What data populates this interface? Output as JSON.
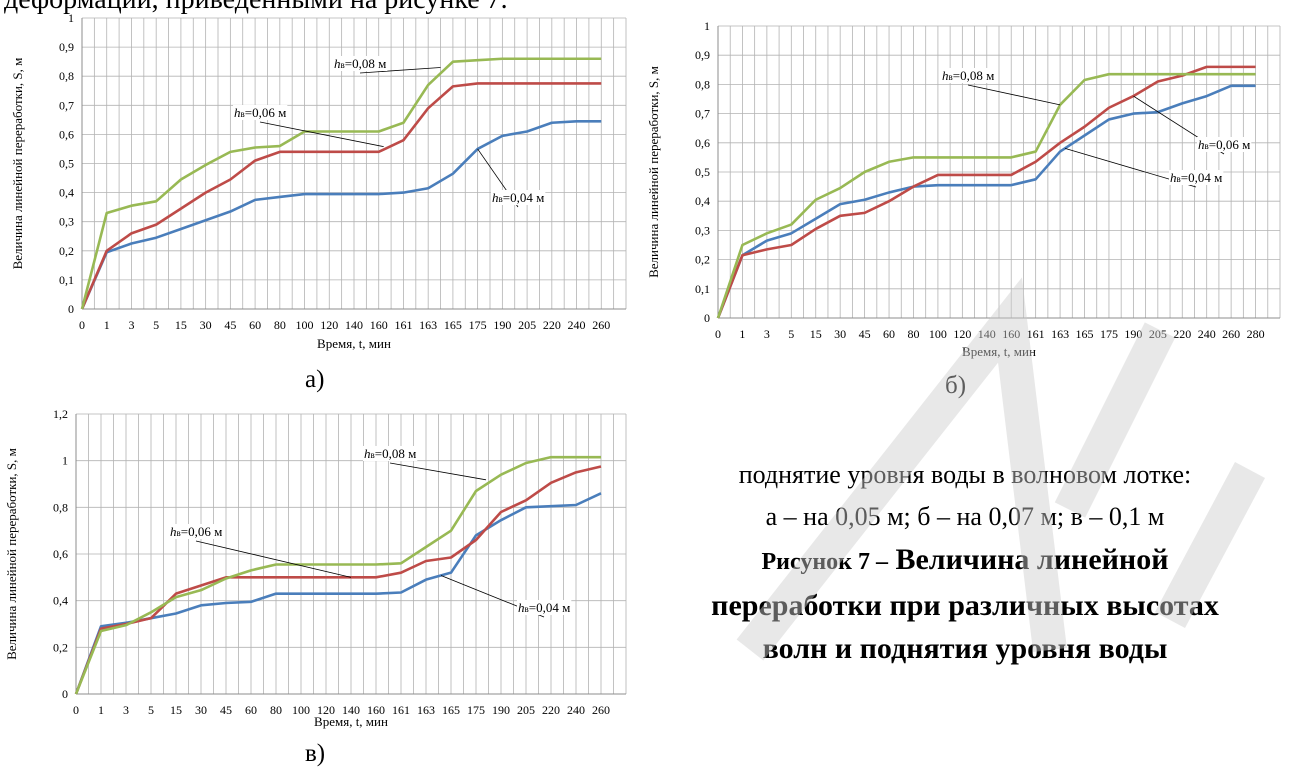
{
  "top_text": "деформаций, приведенными на рисунке 7.",
  "caption": {
    "line1": "поднятие уровня воды в волновом лотке:",
    "line2": "а – на 0,05 м; б – на 0,07 м; в – 0,1 м",
    "title_lead": "Рисунок 7 –",
    "title_rest1": "Величина линейной",
    "title_line2": "переработки при различных высотах",
    "title_line3": "волн и поднятия уровня воды"
  },
  "colors": {
    "h004": "#4a7ebb",
    "h006": "#be4b48",
    "h008": "#98b954",
    "grid": "#b3b3b3",
    "axis": "#8c8c8c"
  },
  "chart_data": [
    {
      "id": "a",
      "panel_label": "а)",
      "type": "line",
      "ylabel": "Величина линейной переработки, S, м",
      "xlabel": "Время, t, мин",
      "categories": [
        "0",
        "1",
        "3",
        "5",
        "15",
        "30",
        "45",
        "60",
        "80",
        "100",
        "120",
        "140",
        "160",
        "161",
        "163",
        "165",
        "175",
        "190",
        "205",
        "220",
        "240",
        "260"
      ],
      "ylim": [
        0,
        1
      ],
      "yticks": [
        "0",
        "0,1",
        "0,2",
        "0,3",
        "0,4",
        "0,5",
        "0,6",
        "0,7",
        "0,8",
        "0,9",
        "1"
      ],
      "grid": true,
      "series": [
        {
          "name": "hв=0,04 м",
          "values": [
            0,
            0.195,
            0.225,
            0.245,
            0.275,
            0.305,
            0.335,
            0.375,
            0.385,
            0.395,
            0.395,
            0.395,
            0.395,
            0.4,
            0.415,
            0.465,
            0.55,
            0.595,
            0.61,
            0.64,
            0.645,
            0.645
          ]
        },
        {
          "name": "hв=0,06 м",
          "values": [
            0,
            0.2,
            0.26,
            0.29,
            0.345,
            0.4,
            0.445,
            0.51,
            0.54,
            0.54,
            0.54,
            0.54,
            0.54,
            0.58,
            0.69,
            0.765,
            0.775,
            0.775,
            0.775,
            0.775,
            0.775,
            0.775
          ]
        },
        {
          "name": "hв=0,08 м",
          "values": [
            0,
            0.33,
            0.355,
            0.37,
            0.445,
            0.495,
            0.54,
            0.555,
            0.56,
            0.61,
            0.61,
            0.61,
            0.61,
            0.64,
            0.77,
            0.85,
            0.855,
            0.86,
            0.86,
            0.86,
            0.86,
            0.86
          ]
        }
      ],
      "annotations": [
        {
          "series": "hв=0,08 м",
          "h": "h",
          "sub": "в",
          "text": "=0,08 м"
        },
        {
          "series": "hв=0,06 м",
          "h": "h",
          "sub": "в",
          "text": "=0,06 м"
        },
        {
          "series": "hв=0,04 м",
          "h": "h",
          "sub": "в",
          "text": "=0,04 м"
        }
      ]
    },
    {
      "id": "b",
      "panel_label": "б)",
      "type": "line",
      "ylabel": "Величина линейной переработки, S, м",
      "xlabel": "Время, t, мин",
      "categories": [
        "0",
        "1",
        "3",
        "5",
        "15",
        "30",
        "45",
        "60",
        "80",
        "100",
        "120",
        "140",
        "160",
        "161",
        "163",
        "165",
        "175",
        "190",
        "205",
        "220",
        "240",
        "260",
        "280"
      ],
      "ylim": [
        0,
        1
      ],
      "yticks": [
        "0",
        "0,1",
        "0,2",
        "0,3",
        "0,4",
        "0,5",
        "0,6",
        "0,7",
        "0,8",
        "0,9",
        "1"
      ],
      "grid": true,
      "series": [
        {
          "name": "hв=0,04 м",
          "values": [
            0,
            0.215,
            0.265,
            0.29,
            0.34,
            0.39,
            0.405,
            0.43,
            0.45,
            0.455,
            0.455,
            0.455,
            0.455,
            0.475,
            0.57,
            0.625,
            0.68,
            0.7,
            0.705,
            0.735,
            0.76,
            0.795,
            0.795
          ]
        },
        {
          "name": "hв=0,06 м",
          "values": [
            0,
            0.215,
            0.235,
            0.25,
            0.305,
            0.35,
            0.36,
            0.4,
            0.45,
            0.49,
            0.49,
            0.49,
            0.49,
            0.535,
            0.6,
            0.655,
            0.72,
            0.76,
            0.81,
            0.83,
            0.86,
            0.86,
            0.86
          ]
        },
        {
          "name": "hв=0,08 м",
          "values": [
            0,
            0.25,
            0.29,
            0.32,
            0.405,
            0.445,
            0.5,
            0.535,
            0.55,
            0.55,
            0.55,
            0.55,
            0.55,
            0.57,
            0.73,
            0.815,
            0.835,
            0.835,
            0.835,
            0.835,
            0.835,
            0.835,
            0.835
          ]
        }
      ],
      "annotations": [
        {
          "series": "hв=0,08 м",
          "h": "h",
          "sub": "в",
          "text": "=0,08 м"
        },
        {
          "series": "hв=0,06 м",
          "h": "h",
          "sub": "в",
          "text": "=0,06 м"
        },
        {
          "series": "hв=0,04 м",
          "h": "h",
          "sub": "в",
          "text": "=0,04 м"
        }
      ]
    },
    {
      "id": "c",
      "panel_label": "в)",
      "type": "line",
      "ylabel": "Величина линейной переработки, S, м",
      "xlabel": "Время, t, мин",
      "categories": [
        "0",
        "1",
        "3",
        "5",
        "15",
        "30",
        "45",
        "60",
        "80",
        "100",
        "120",
        "140",
        "160",
        "161",
        "163",
        "165",
        "175",
        "190",
        "205",
        "220",
        "240",
        "260"
      ],
      "ylim": [
        0,
        1.2
      ],
      "yticks": [
        "0",
        "0,2",
        "0,4",
        "0,6",
        "0,8",
        "1",
        "1,2"
      ],
      "grid": true,
      "series": [
        {
          "name": "hв=0,04 м",
          "values": [
            0,
            0.29,
            0.305,
            0.325,
            0.345,
            0.38,
            0.39,
            0.395,
            0.43,
            0.43,
            0.43,
            0.43,
            0.43,
            0.435,
            0.49,
            0.52,
            0.68,
            0.745,
            0.8,
            0.805,
            0.81,
            0.86
          ]
        },
        {
          "name": "hв=0,06 м",
          "values": [
            0,
            0.28,
            0.3,
            0.325,
            0.43,
            0.465,
            0.5,
            0.5,
            0.5,
            0.5,
            0.5,
            0.5,
            0.5,
            0.52,
            0.57,
            0.585,
            0.66,
            0.78,
            0.83,
            0.905,
            0.95,
            0.975
          ]
        },
        {
          "name": "hв=0,08 м",
          "values": [
            0,
            0.27,
            0.295,
            0.35,
            0.415,
            0.445,
            0.495,
            0.53,
            0.555,
            0.555,
            0.555,
            0.555,
            0.555,
            0.56,
            0.63,
            0.7,
            0.87,
            0.94,
            0.99,
            1.015,
            1.015,
            1.015
          ]
        }
      ],
      "annotations": [
        {
          "series": "hв=0,08 м",
          "h": "h",
          "sub": "в",
          "text": "=0,08 м"
        },
        {
          "series": "hв=0,06 м",
          "h": "h",
          "sub": "в",
          "text": "=0,06 м"
        },
        {
          "series": "hв=0,04 м",
          "h": "h",
          "sub": "в",
          "text": "=0,04 м"
        }
      ]
    }
  ]
}
